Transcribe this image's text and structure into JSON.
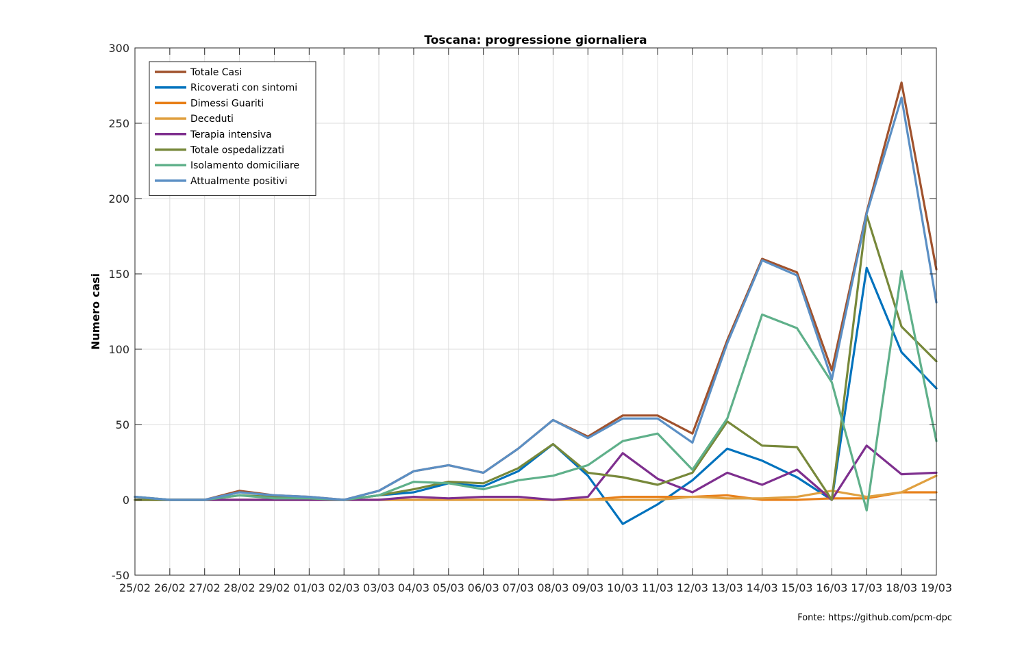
{
  "chart_data": {
    "type": "line",
    "title": "Toscana: progressione giornaliera",
    "xlabel": "",
    "ylabel": "Numero casi",
    "ylim": [
      -50,
      300
    ],
    "yticks": [
      -50,
      0,
      50,
      100,
      150,
      200,
      250,
      300
    ],
    "grid": true,
    "legend_position": "top-left",
    "categories": [
      "25/02",
      "26/02",
      "27/02",
      "28/02",
      "29/02",
      "01/03",
      "02/03",
      "03/03",
      "04/03",
      "05/03",
      "06/03",
      "07/03",
      "08/03",
      "09/03",
      "10/03",
      "11/03",
      "12/03",
      "13/03",
      "14/03",
      "15/03",
      "16/03",
      "17/03",
      "18/03",
      "19/03"
    ],
    "series": [
      {
        "name": "Totale Casi",
        "color": "#a0522d",
        "values": [
          2,
          0,
          0,
          6,
          3,
          2,
          0,
          6,
          19,
          23,
          18,
          34,
          53,
          42,
          56,
          56,
          44,
          106,
          160,
          151,
          86,
          191,
          277,
          153
        ]
      },
      {
        "name": "Ricoverati con sintomi",
        "color": "#0072bd",
        "values": [
          0,
          0,
          0,
          0,
          0,
          0,
          0,
          3,
          5,
          11,
          9,
          19,
          37,
          16,
          -16,
          -3,
          13,
          34,
          26,
          15,
          0,
          154,
          98,
          74
        ]
      },
      {
        "name": "Dimessi Guariti",
        "color": "#e8801a",
        "values": [
          0,
          0,
          0,
          0,
          0,
          0,
          0,
          0,
          0,
          0,
          0,
          0,
          0,
          0,
          2,
          2,
          2,
          3,
          0,
          0,
          1,
          1,
          5,
          5
        ]
      },
      {
        "name": "Deceduti",
        "color": "#e0a040",
        "values": [
          0,
          0,
          0,
          0,
          0,
          0,
          0,
          0,
          0,
          0,
          0,
          0,
          0,
          0,
          0,
          0,
          2,
          1,
          1,
          2,
          6,
          2,
          5,
          16
        ]
      },
      {
        "name": "Terapia intensiva",
        "color": "#7e2f8e",
        "values": [
          0,
          0,
          0,
          0,
          0,
          0,
          0,
          0,
          2,
          1,
          2,
          2,
          0,
          2,
          31,
          14,
          5,
          18,
          10,
          20,
          0,
          36,
          17,
          18
        ]
      },
      {
        "name": "Totale ospedalizzati",
        "color": "#77883a",
        "values": [
          0,
          0,
          0,
          3,
          2,
          1,
          0,
          3,
          7,
          12,
          11,
          21,
          37,
          18,
          15,
          10,
          18,
          52,
          36,
          35,
          0,
          189,
          115,
          92
        ]
      },
      {
        "name": "Isolamento domiciliare",
        "color": "#5fb08a",
        "values": [
          2,
          0,
          0,
          3,
          1,
          1,
          0,
          3,
          12,
          11,
          7,
          13,
          16,
          23,
          39,
          44,
          20,
          54,
          123,
          114,
          78,
          -7,
          152,
          39
        ]
      },
      {
        "name": "Attualmente positivi",
        "color": "#5b8fc4",
        "values": [
          2,
          0,
          0,
          5,
          3,
          2,
          0,
          6,
          19,
          23,
          18,
          34,
          53,
          41,
          54,
          54,
          38,
          104,
          159,
          149,
          80,
          190,
          267,
          131
        ]
      }
    ]
  },
  "source_note": "Fonte: https://github.com/pcm-dpc"
}
